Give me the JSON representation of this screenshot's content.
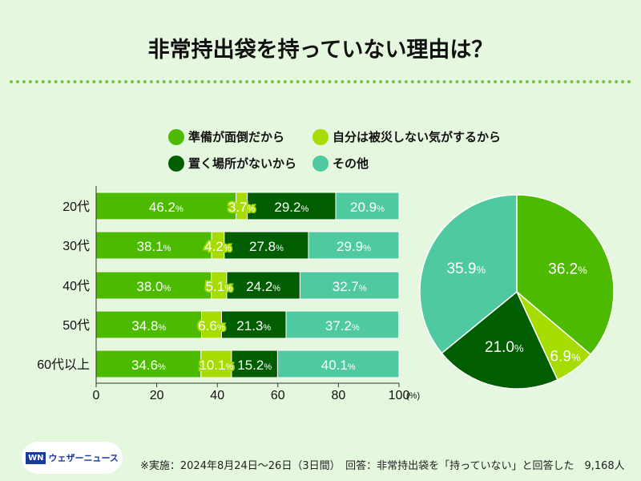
{
  "title": "非常持出袋を持っていない理由は？",
  "colors": [
    "#4cbb00",
    "#a6dc00",
    "#005e00",
    "#4ec9a0"
  ],
  "footer": "※実施：2024年8月24日〜26日（3日間）　回答：非常持出袋を「持っていない」と回答した　9,168人",
  "logo": {
    "mark": "WN",
    "text": "ウェザーニュース"
  },
  "chart_data": [
    {
      "type": "bar",
      "stacked": true,
      "orientation": "horizontal",
      "categories": [
        "20代",
        "30代",
        "40代",
        "50代",
        "60代以上"
      ],
      "series": [
        {
          "name": "準備が面倒だから",
          "values": [
            46.2,
            38.1,
            38.0,
            34.8,
            34.6
          ]
        },
        {
          "name": "自分は被災しない気がするから",
          "values": [
            3.7,
            4.2,
            5.1,
            6.6,
            10.1
          ]
        },
        {
          "name": "置く場所がないから",
          "values": [
            29.2,
            27.8,
            24.2,
            21.3,
            15.2
          ]
        },
        {
          "name": "その他",
          "values": [
            20.9,
            29.9,
            32.7,
            37.2,
            40.1
          ]
        }
      ],
      "xlim": [
        0,
        100
      ],
      "xticks": [
        "0",
        "20",
        "40",
        "60",
        "80",
        "100"
      ],
      "xunit": "(%)",
      "legend": "top"
    },
    {
      "type": "pie",
      "labels": [
        "準備が面倒だから",
        "自分は被災しない気がするから",
        "置く場所がないから",
        "その他"
      ],
      "values": [
        36.2,
        6.9,
        21.0,
        35.9
      ]
    }
  ]
}
